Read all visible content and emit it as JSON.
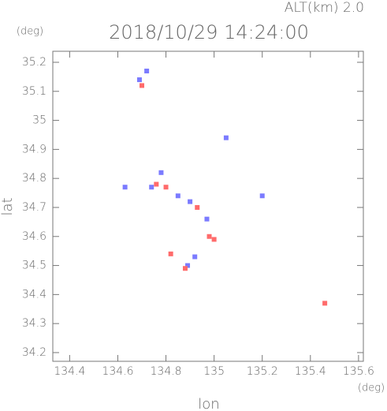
{
  "chart_data": {
    "type": "scatter",
    "title": "2018/10/29 14:24:00",
    "subtitle": "ALT(km) 2.0",
    "x_label": "lon",
    "y_label": "lat",
    "x_unit": "(deg)",
    "y_unit": "(deg)",
    "xlim": [
      134.33,
      135.62
    ],
    "ylim": [
      34.17,
      35.238
    ],
    "xticks": [
      134.4,
      134.6,
      134.8,
      135.0,
      135.2,
      135.4,
      135.6
    ],
    "yticks": [
      34.2,
      34.3,
      34.4,
      34.5,
      34.6,
      34.7,
      34.8,
      34.9,
      35.0,
      35.1,
      35.2
    ],
    "series": [
      {
        "color": "#7b7bff",
        "x": [
          134.69,
          134.72,
          134.78,
          134.63,
          134.85,
          134.9,
          134.97,
          135.05,
          135.2,
          134.89,
          134.92,
          134.74
        ],
        "y": [
          35.14,
          35.17,
          34.82,
          34.77,
          34.74,
          34.72,
          34.66,
          34.94,
          34.74,
          34.5,
          34.53,
          34.77
        ]
      },
      {
        "color": "#ff6b6b",
        "x": [
          134.7,
          134.8,
          134.93,
          134.98,
          135.0,
          134.82,
          135.46,
          134.88,
          134.76
        ],
        "y": [
          35.12,
          34.77,
          34.7,
          34.6,
          34.59,
          34.54,
          34.37,
          34.49,
          34.78
        ]
      }
    ]
  }
}
